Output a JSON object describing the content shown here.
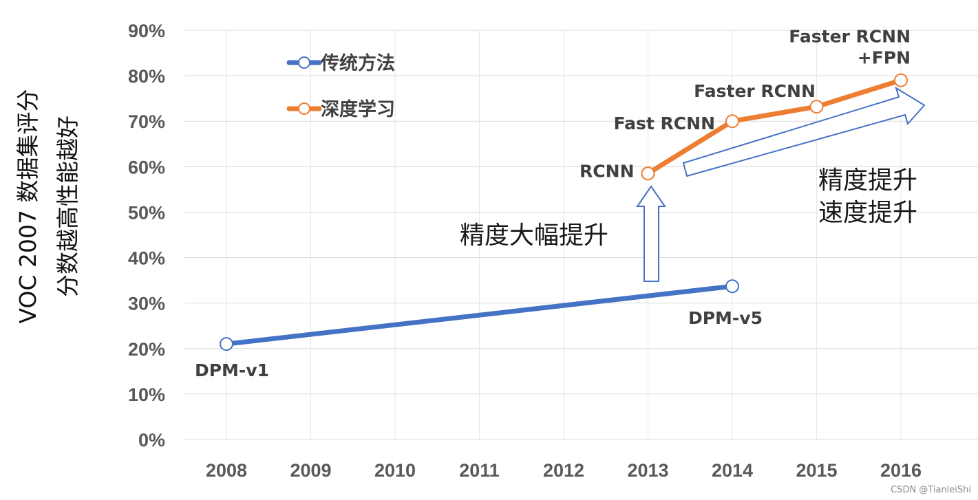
{
  "chart_data": {
    "type": "line",
    "x": [
      2008,
      2009,
      2010,
      2011,
      2012,
      2013,
      2014,
      2015,
      2016
    ],
    "x_tick_labels": [
      "2008",
      "2009",
      "2010",
      "2011",
      "2012",
      "2013",
      "2014",
      "2015",
      "2016"
    ],
    "y_tick_labels": [
      "0%",
      "10%",
      "20%",
      "30%",
      "40%",
      "50%",
      "60%",
      "70%",
      "80%",
      "90%"
    ],
    "ylim": [
      0,
      90
    ],
    "ylabel_lines": [
      "VOC 2007 数据集评分",
      "分数越高性能越好"
    ],
    "grid": true,
    "legend_position": "top-left",
    "series": [
      {
        "name": "传统方法",
        "color": "#4472C4",
        "points": [
          {
            "x": 2008,
            "y": 21,
            "label": "DPM-v1"
          },
          {
            "x": 2014,
            "y": 33.7,
            "label": "DPM-v5"
          }
        ]
      },
      {
        "name": "深度学习",
        "color": "#ED7D31",
        "points": [
          {
            "x": 2013,
            "y": 58.5,
            "label": "RCNN"
          },
          {
            "x": 2014,
            "y": 70,
            "label": "Fast RCNN"
          },
          {
            "x": 2015,
            "y": 73.2,
            "label": "Faster RCNN"
          },
          {
            "x": 2016,
            "y": 79,
            "label": "Faster RCNN\n+FPN"
          }
        ]
      }
    ],
    "annotations": {
      "big_improvement": "精度大幅提升",
      "trend": [
        "精度提升",
        "速度提升"
      ]
    },
    "arrow_color": "#4472C4"
  },
  "watermark": "CSDN @TianleiShi"
}
